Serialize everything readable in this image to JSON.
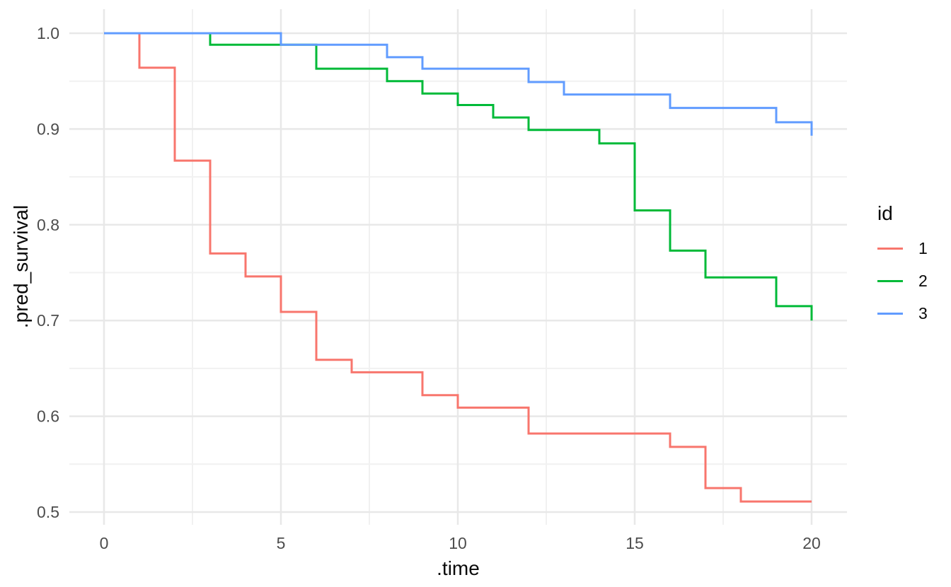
{
  "chart_data": {
    "type": "line",
    "subtype": "step-survival-curves",
    "title": "",
    "xlabel": ".time",
    "ylabel": ".pred_survival",
    "grid": true,
    "background": "#ffffff",
    "x_axis": {
      "ticks": [
        0,
        5,
        10,
        15,
        20
      ],
      "tick_labels": [
        "0",
        "5",
        "10",
        "15",
        "20"
      ],
      "minor_ticks": [
        2.5,
        7.5,
        12.5,
        17.5
      ],
      "range": [
        -1,
        21
      ]
    },
    "y_axis": {
      "ticks": [
        1.0,
        0.9,
        0.8,
        0.7,
        0.6,
        0.5
      ],
      "tick_labels": [
        "1.0",
        "0.9",
        "0.8",
        "0.7",
        "0.6",
        "0.5"
      ],
      "minor_ticks": [
        0.95,
        0.85,
        0.75,
        0.65,
        0.55
      ],
      "range": [
        0.487,
        1.025
      ]
    },
    "legend": {
      "title": "id",
      "position": "right",
      "entries": [
        {
          "label": "1",
          "color": "#F8766D"
        },
        {
          "label": "2",
          "color": "#00BA38"
        },
        {
          "label": "3",
          "color": "#619CFF"
        }
      ]
    },
    "series": [
      {
        "name": "1",
        "color": "#F8766D",
        "points": [
          [
            0,
            1.0
          ],
          [
            1,
            0.964
          ],
          [
            2,
            0.867
          ],
          [
            3,
            0.77
          ],
          [
            4,
            0.746
          ],
          [
            5,
            0.709
          ],
          [
            6,
            0.659
          ],
          [
            7,
            0.646
          ],
          [
            9,
            0.622
          ],
          [
            10,
            0.609
          ],
          [
            12,
            0.582
          ],
          [
            16,
            0.568
          ],
          [
            17,
            0.525
          ],
          [
            18,
            0.511
          ],
          [
            20,
            0.511
          ]
        ]
      },
      {
        "name": "2",
        "color": "#00BA38",
        "points": [
          [
            0,
            1.0
          ],
          [
            3,
            0.988
          ],
          [
            6,
            0.963
          ],
          [
            8,
            0.95
          ],
          [
            9,
            0.937
          ],
          [
            10,
            0.925
          ],
          [
            11,
            0.912
          ],
          [
            12,
            0.899
          ],
          [
            14,
            0.885
          ],
          [
            15,
            0.815
          ],
          [
            16,
            0.773
          ],
          [
            17,
            0.745
          ],
          [
            19,
            0.715
          ],
          [
            20,
            0.7
          ]
        ]
      },
      {
        "name": "3",
        "color": "#619CFF",
        "points": [
          [
            0,
            1.0
          ],
          [
            5,
            0.988
          ],
          [
            8,
            0.975
          ],
          [
            9,
            0.963
          ],
          [
            12,
            0.949
          ],
          [
            13,
            0.936
          ],
          [
            16,
            0.922
          ],
          [
            19,
            0.907
          ],
          [
            20,
            0.893
          ]
        ]
      }
    ],
    "colors": {
      "grid_major": "#E8E8E8",
      "grid_minor": "#F1F1F1",
      "axis_text": "#4d4d4d",
      "axis_title": "#0a0a0a"
    }
  }
}
